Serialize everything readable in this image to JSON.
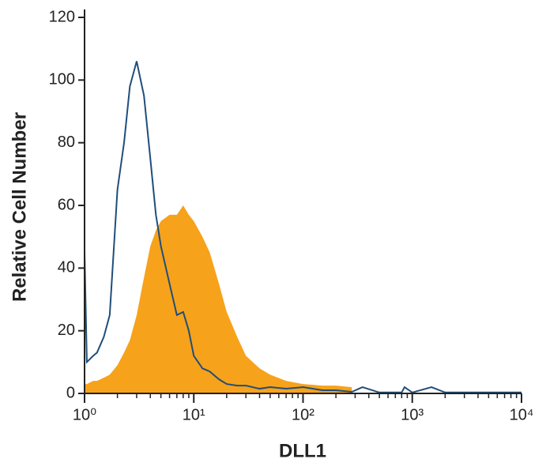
{
  "chart_data": {
    "type": "histogram-overlay",
    "x_label": "DLL1",
    "y_label": "Relative Cell Number",
    "x_scale": "log",
    "xlim": [
      1,
      10000
    ],
    "xticks": [
      {
        "value": 1,
        "label": "10⁰"
      },
      {
        "value": 10,
        "label": "10¹"
      },
      {
        "value": 100,
        "label": "10²"
      },
      {
        "value": 1000,
        "label": "10³"
      },
      {
        "value": 10000,
        "label": "10⁴"
      }
    ],
    "ylim": [
      0,
      120
    ],
    "yticks": [
      0,
      20,
      40,
      60,
      80,
      100,
      120
    ],
    "x": [
      1,
      1.05,
      1.2,
      1.3,
      1.5,
      1.7,
      2,
      2.3,
      2.6,
      3,
      3.5,
      4,
      4.5,
      5,
      6,
      7,
      8,
      9,
      10,
      12,
      14,
      17,
      20,
      25,
      30,
      40,
      50,
      70,
      100,
      150,
      200,
      280,
      350,
      500,
      800,
      850,
      1000,
      1500,
      2000,
      10000
    ],
    "series": [
      {
        "kind": "area",
        "color": "#f7a21b",
        "values": [
          3,
          3,
          4,
          4,
          5,
          6,
          9,
          13,
          17,
          25,
          37,
          47,
          52,
          55,
          57,
          57,
          60,
          57,
          55,
          50,
          45,
          35,
          26,
          18,
          12,
          8,
          6,
          4,
          3,
          2.5,
          2.5,
          2,
          null,
          null,
          null,
          null,
          null,
          null,
          null,
          null
        ]
      },
      {
        "kind": "line",
        "color": "#1f4e79",
        "values": [
          45,
          10,
          12,
          13,
          18,
          25,
          65,
          80,
          98,
          106,
          95,
          75,
          57,
          47,
          35,
          25,
          26,
          20,
          12,
          8,
          7,
          4.5,
          3,
          2.5,
          2.5,
          1.5,
          2,
          1.5,
          2,
          1,
          1,
          0.5,
          2,
          0.3,
          0.3,
          2,
          0.3,
          2,
          0.3,
          0.3
        ]
      }
    ]
  }
}
